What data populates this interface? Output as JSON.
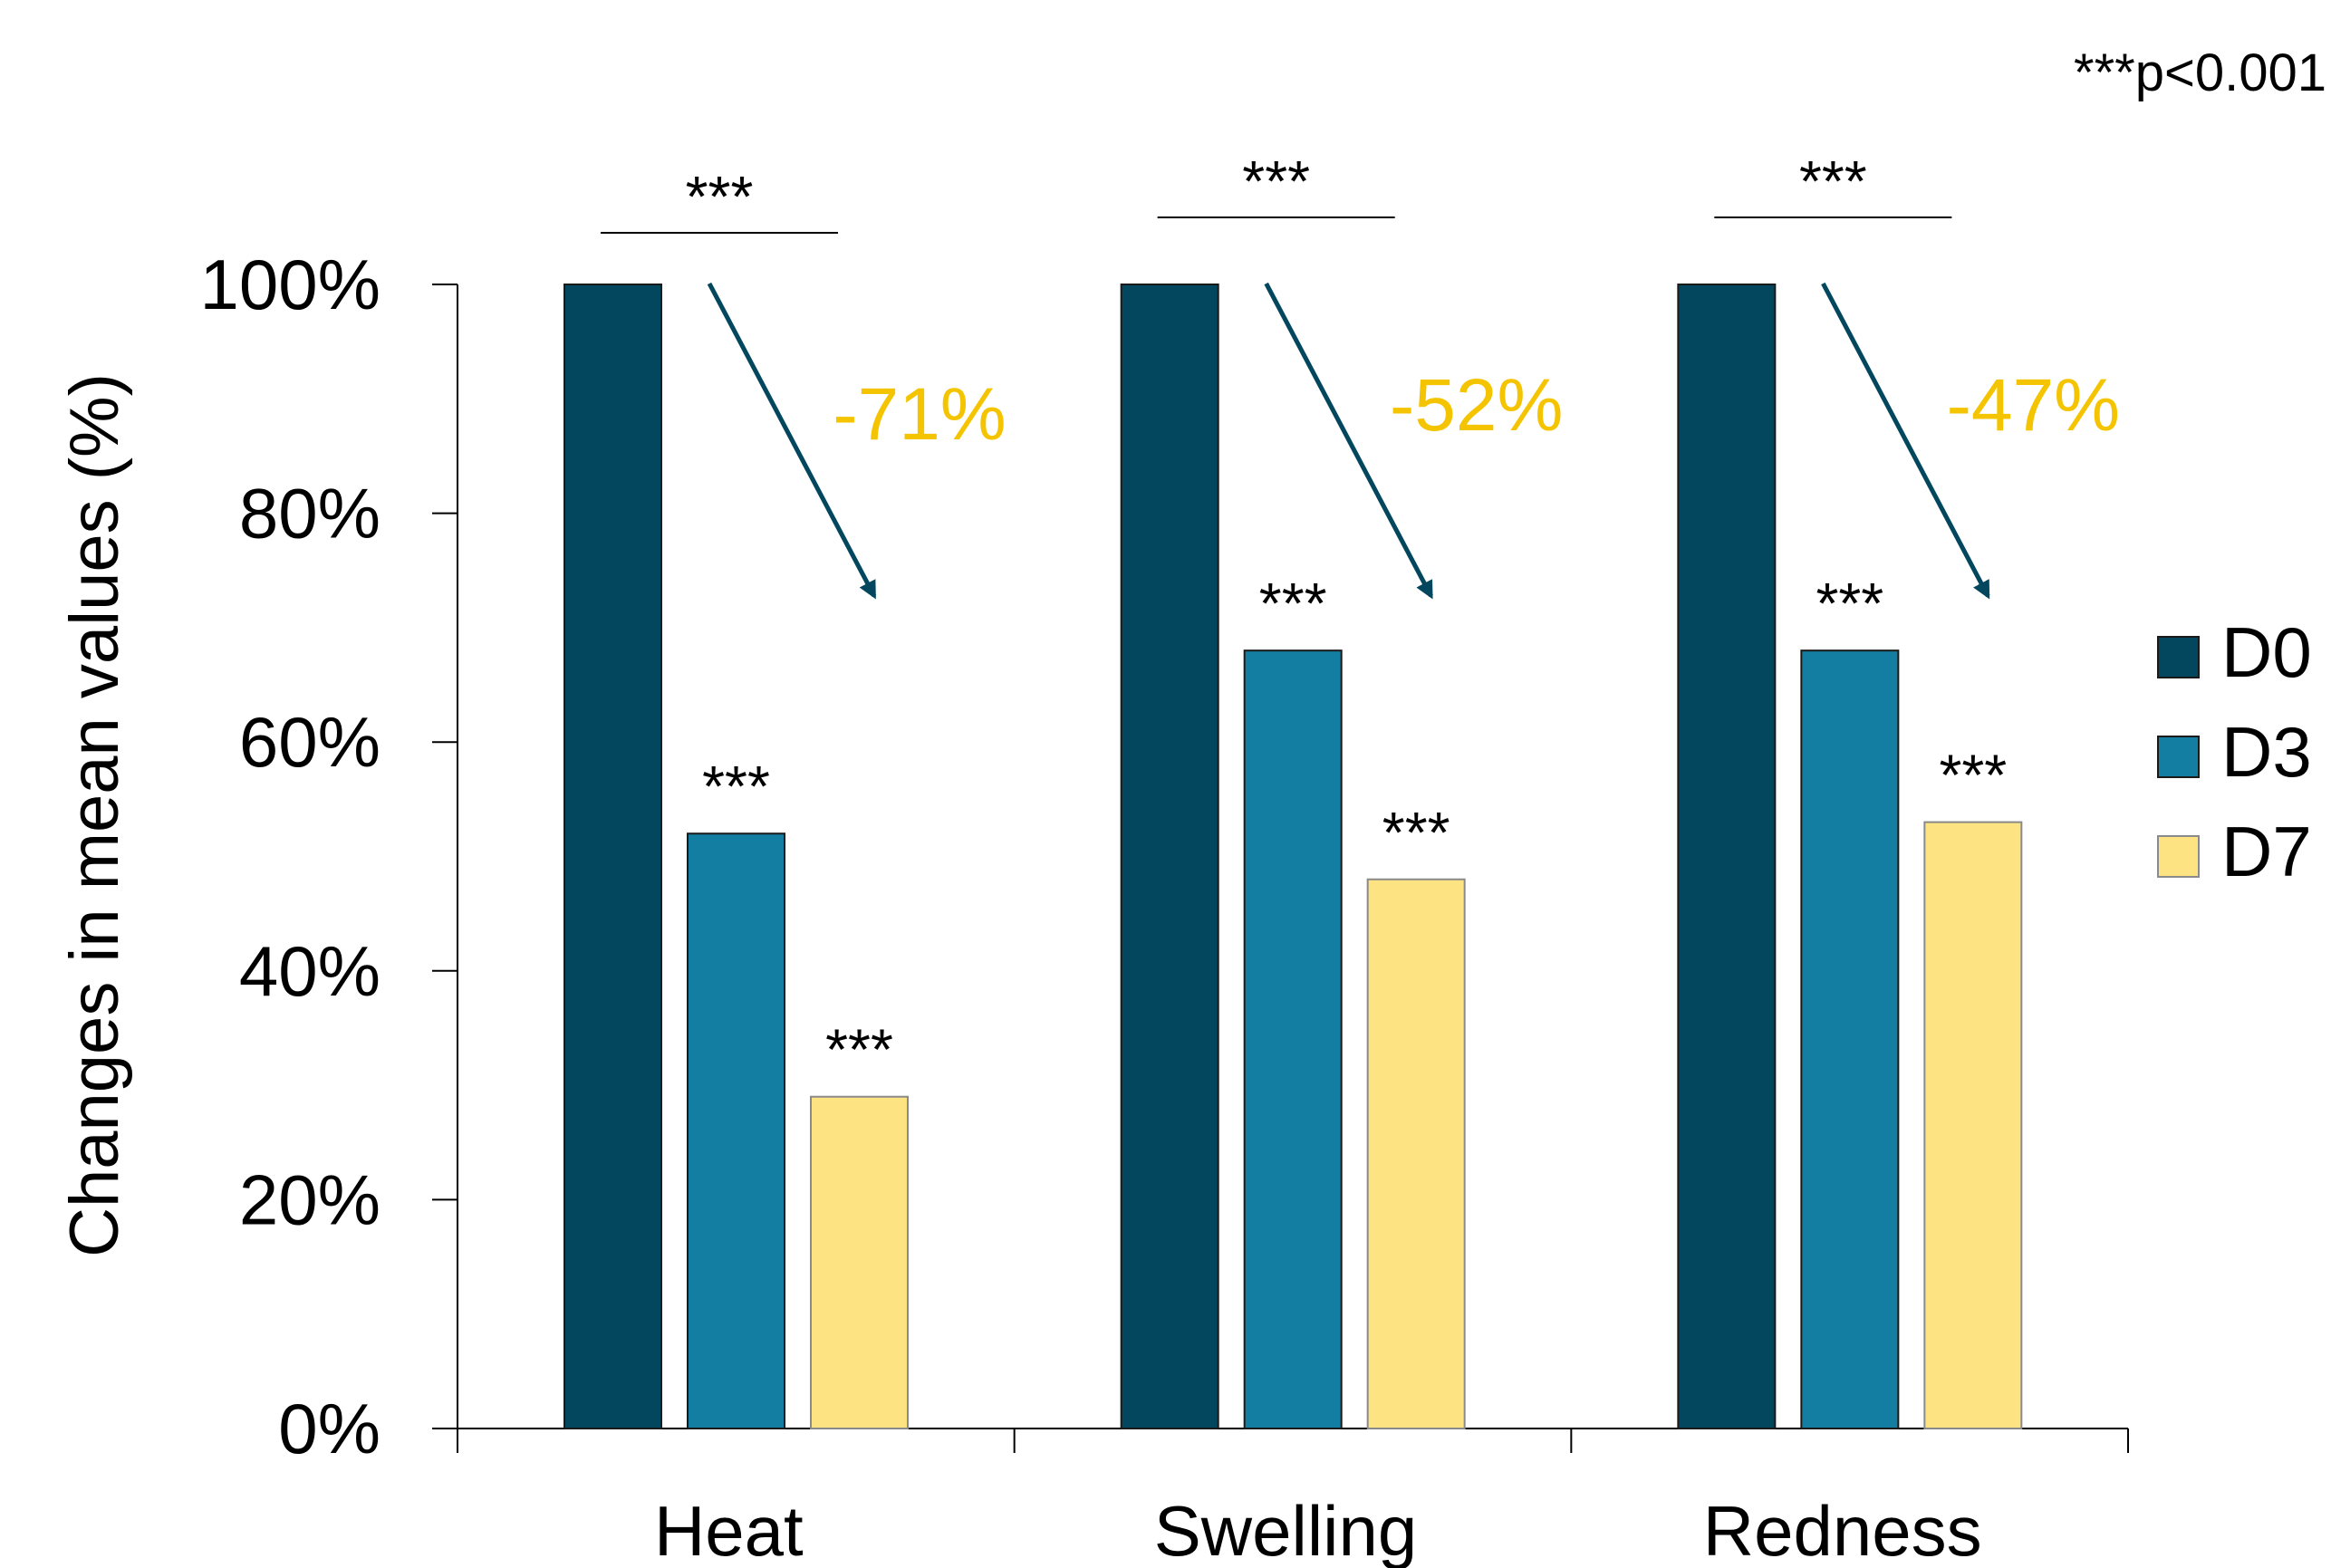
{
  "chart_data": {
    "type": "bar",
    "ylabel": "Changes in mean values (%)",
    "xlabel": "",
    "ylim": [
      0,
      100
    ],
    "yticks": [
      "0%",
      "20%",
      "40%",
      "60%",
      "80%",
      "100%"
    ],
    "categories": [
      "Heat",
      "Swelling",
      "Redness"
    ],
    "series": [
      {
        "name": "D0",
        "color": "#02475e",
        "values": [
          100,
          100,
          100
        ]
      },
      {
        "name": "D3",
        "color": "#137ea1",
        "values": [
          52,
          68,
          68
        ]
      },
      {
        "name": "D7",
        "color": "#fde382",
        "values": [
          29,
          48,
          53
        ]
      }
    ],
    "bar_significance": [
      [
        null,
        "***",
        "***"
      ],
      [
        null,
        "***",
        "***"
      ],
      [
        null,
        "***",
        "***"
      ]
    ],
    "group_significance": [
      "***",
      "***",
      "***"
    ],
    "change_labels": [
      "-71%",
      "-52%",
      "-47%"
    ],
    "change_label_color": "#f5c400",
    "arrow_color": "#02475e",
    "significance_note": "***p<0.001",
    "legend_position": "right",
    "grid": false
  }
}
